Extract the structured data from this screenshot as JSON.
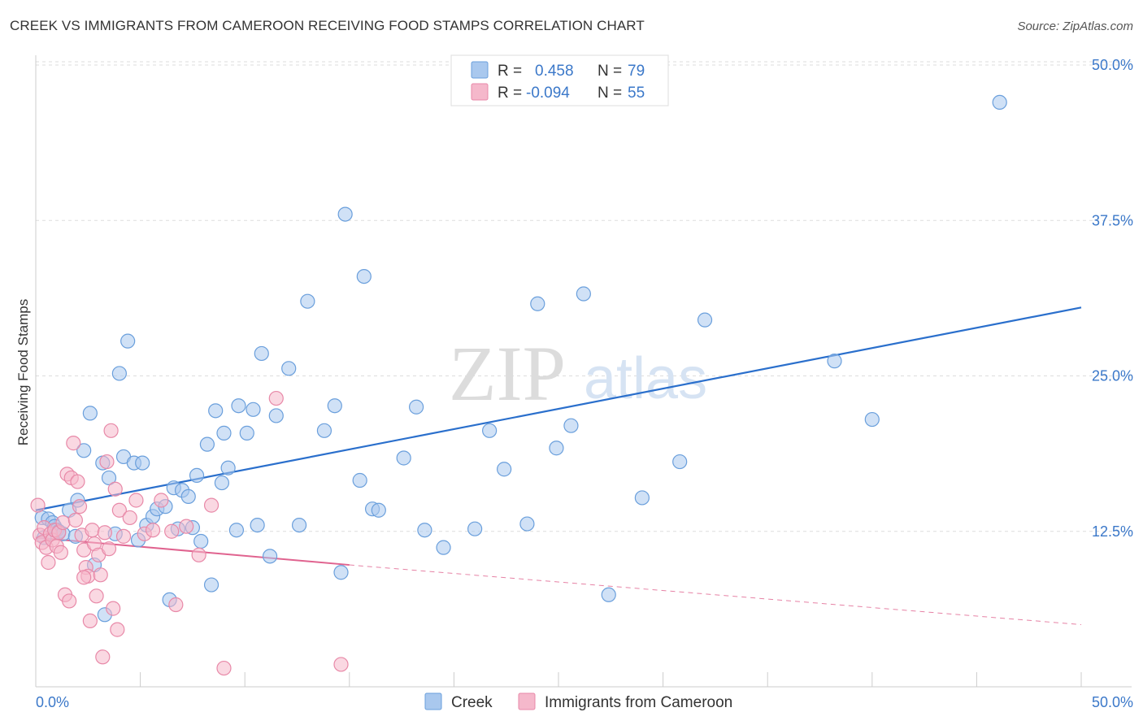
{
  "title": "CREEK VS IMMIGRANTS FROM CAMEROON RECEIVING FOOD STAMPS CORRELATION CHART",
  "source": "Source: ZipAtlas.com",
  "watermark": {
    "part1": "ZIP",
    "part2": "atlas"
  },
  "colors": {
    "blue_fill": "#a9c8ee",
    "blue_stroke": "#6a9fdc",
    "blue_line": "#2a6fcc",
    "pink_fill": "#f5b8cb",
    "pink_stroke": "#e889a8",
    "pink_line": "#e0638f",
    "axis_label": "#3b78c9",
    "grid": "#dddddd"
  },
  "legend_top": {
    "rows": [
      {
        "r_label": "R =",
        "r_value": "0.458",
        "n_label": "N =",
        "n_value": "79"
      },
      {
        "r_label": "R =",
        "r_value": "-0.094",
        "n_label": "N =",
        "n_value": "55"
      }
    ]
  },
  "legend_bottom": {
    "series1": "Creek",
    "series2": "Immigrants from Cameroon"
  },
  "chart_data": {
    "type": "scatter",
    "title": "CREEK VS IMMIGRANTS FROM CAMEROON RECEIVING FOOD STAMPS CORRELATION CHART",
    "xlabel": "",
    "ylabel": "Receiving Food Stamps",
    "xlim": [
      0,
      50
    ],
    "ylim": [
      0,
      50
    ],
    "x_tick_labels": [
      "0.0%",
      "50.0%"
    ],
    "y_ticks": [
      12.5,
      25.0,
      37.5,
      50.0
    ],
    "y_tick_labels": [
      "12.5%",
      "25.0%",
      "37.5%",
      "50.0%"
    ],
    "grid": true,
    "legend_position": "top-center",
    "series": [
      {
        "name": "Creek",
        "R": 0.458,
        "N": 79,
        "trend": {
          "x0": 0,
          "y0": 14.2,
          "x1": 50,
          "y1": 30.5
        },
        "points": [
          [
            0.3,
            13.6
          ],
          [
            0.4,
            12.0
          ],
          [
            0.6,
            13.5
          ],
          [
            0.8,
            13.2
          ],
          [
            0.9,
            12.9
          ],
          [
            1.0,
            12.6
          ],
          [
            1.1,
            12.5
          ],
          [
            1.3,
            12.3
          ],
          [
            1.6,
            14.2
          ],
          [
            1.9,
            12.1
          ],
          [
            2.0,
            15.0
          ],
          [
            2.3,
            19.0
          ],
          [
            2.6,
            22.0
          ],
          [
            2.8,
            9.8
          ],
          [
            3.2,
            18.0
          ],
          [
            3.3,
            5.8
          ],
          [
            3.5,
            16.8
          ],
          [
            3.8,
            12.3
          ],
          [
            4.0,
            25.2
          ],
          [
            4.2,
            18.5
          ],
          [
            4.4,
            27.8
          ],
          [
            4.7,
            18.0
          ],
          [
            4.9,
            11.8
          ],
          [
            5.1,
            18.0
          ],
          [
            5.3,
            13.0
          ],
          [
            5.6,
            13.7
          ],
          [
            5.8,
            14.3
          ],
          [
            6.2,
            14.5
          ],
          [
            6.4,
            7.0
          ],
          [
            6.6,
            16.0
          ],
          [
            6.8,
            12.7
          ],
          [
            7.0,
            15.8
          ],
          [
            7.3,
            15.3
          ],
          [
            7.5,
            12.8
          ],
          [
            7.7,
            17.0
          ],
          [
            7.9,
            11.7
          ],
          [
            8.2,
            19.5
          ],
          [
            8.4,
            8.2
          ],
          [
            8.6,
            22.2
          ],
          [
            8.9,
            16.4
          ],
          [
            9.0,
            20.4
          ],
          [
            9.2,
            17.6
          ],
          [
            9.6,
            12.6
          ],
          [
            9.7,
            22.6
          ],
          [
            10.1,
            20.4
          ],
          [
            10.4,
            22.3
          ],
          [
            10.6,
            13.0
          ],
          [
            10.8,
            26.8
          ],
          [
            11.2,
            10.5
          ],
          [
            11.5,
            21.8
          ],
          [
            12.1,
            25.6
          ],
          [
            12.6,
            13.0
          ],
          [
            13.0,
            31.0
          ],
          [
            13.8,
            20.6
          ],
          [
            14.3,
            22.6
          ],
          [
            14.6,
            9.2
          ],
          [
            14.8,
            38.0
          ],
          [
            15.5,
            16.6
          ],
          [
            15.7,
            33.0
          ],
          [
            16.1,
            14.3
          ],
          [
            16.4,
            14.2
          ],
          [
            17.6,
            18.4
          ],
          [
            18.2,
            22.5
          ],
          [
            18.6,
            12.6
          ],
          [
            19.5,
            11.2
          ],
          [
            21.0,
            12.7
          ],
          [
            21.7,
            20.6
          ],
          [
            22.4,
            17.5
          ],
          [
            23.5,
            13.1
          ],
          [
            24.0,
            30.8
          ],
          [
            24.9,
            19.2
          ],
          [
            25.6,
            21.0
          ],
          [
            26.2,
            31.6
          ],
          [
            27.4,
            7.4
          ],
          [
            29.0,
            15.2
          ],
          [
            30.8,
            18.1
          ],
          [
            32.0,
            29.5
          ],
          [
            38.2,
            26.2
          ],
          [
            40.0,
            21.5
          ],
          [
            46.1,
            47.0
          ]
        ]
      },
      {
        "name": "Immigrants from Cameroon",
        "R": -0.094,
        "N": 55,
        "trend": {
          "x0": 0,
          "y0": 12.0,
          "x1": 15,
          "y1": 9.8
        },
        "trend_extrapolated": {
          "x0": 15,
          "y0": 9.8,
          "x1": 50,
          "y1": 5.0
        },
        "points": [
          [
            0.1,
            14.6
          ],
          [
            0.2,
            12.2
          ],
          [
            0.3,
            11.6
          ],
          [
            0.4,
            12.8
          ],
          [
            0.5,
            11.2
          ],
          [
            0.6,
            10.0
          ],
          [
            0.7,
            12.3
          ],
          [
            0.8,
            11.8
          ],
          [
            0.9,
            12.6
          ],
          [
            1.0,
            11.3
          ],
          [
            1.1,
            12.4
          ],
          [
            1.2,
            10.8
          ],
          [
            1.3,
            13.2
          ],
          [
            1.4,
            7.4
          ],
          [
            1.5,
            17.1
          ],
          [
            1.6,
            6.9
          ],
          [
            1.7,
            16.8
          ],
          [
            1.8,
            19.6
          ],
          [
            1.9,
            13.4
          ],
          [
            2.0,
            16.5
          ],
          [
            2.1,
            14.5
          ],
          [
            2.2,
            12.2
          ],
          [
            2.3,
            11.0
          ],
          [
            2.4,
            9.6
          ],
          [
            2.5,
            8.9
          ],
          [
            2.6,
            5.3
          ],
          [
            2.7,
            12.6
          ],
          [
            2.8,
            11.5
          ],
          [
            2.9,
            7.3
          ],
          [
            3.0,
            10.6
          ],
          [
            3.1,
            9.0
          ],
          [
            3.2,
            2.4
          ],
          [
            3.3,
            12.4
          ],
          [
            3.4,
            18.1
          ],
          [
            3.5,
            11.1
          ],
          [
            3.6,
            20.6
          ],
          [
            3.7,
            6.3
          ],
          [
            3.8,
            15.9
          ],
          [
            3.9,
            4.6
          ],
          [
            4.0,
            14.2
          ],
          [
            4.2,
            12.1
          ],
          [
            4.5,
            13.6
          ],
          [
            4.8,
            15.0
          ],
          [
            5.2,
            12.3
          ],
          [
            5.6,
            12.6
          ],
          [
            6.0,
            15.0
          ],
          [
            6.5,
            12.5
          ],
          [
            6.7,
            6.6
          ],
          [
            7.2,
            12.9
          ],
          [
            7.8,
            10.6
          ],
          [
            8.4,
            14.6
          ],
          [
            9.0,
            1.5
          ],
          [
            11.5,
            23.2
          ],
          [
            14.6,
            1.8
          ],
          [
            2.3,
            8.8
          ]
        ]
      }
    ]
  }
}
